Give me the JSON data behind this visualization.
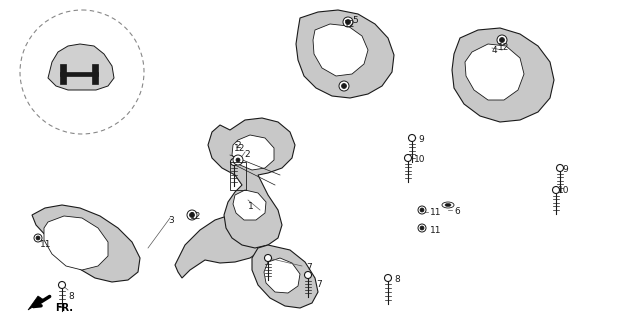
{
  "bg_color": "#ffffff",
  "line_color": "#1a1a1a",
  "fill_color": "#c8c8c8",
  "fill_light": "#e0e0e0",
  "fig_width": 6.22,
  "fig_height": 3.2,
  "dpi": 100,
  "xlim": [
    0,
    622
  ],
  "ylim": [
    0,
    320
  ]
}
